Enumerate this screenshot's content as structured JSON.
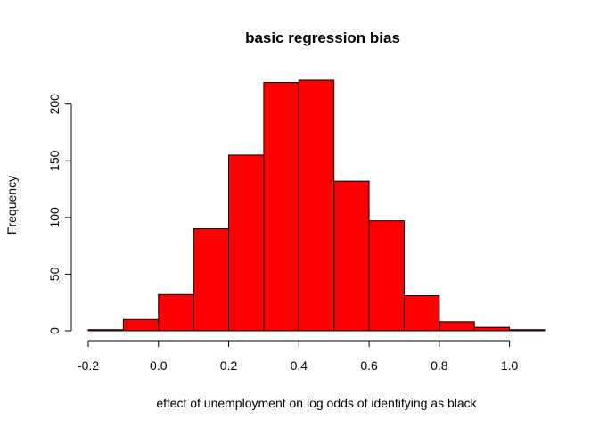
{
  "chart_data": {
    "type": "bar",
    "title": "basic regression bias",
    "xlabel": "effect of unemployment on log odds of identifying as black",
    "ylabel": "Frequency",
    "bin_edges": [
      -0.2,
      -0.1,
      0.0,
      0.1,
      0.2,
      0.3,
      0.4,
      0.5,
      0.6,
      0.7,
      0.8,
      0.9,
      1.0,
      1.1
    ],
    "values": [
      1,
      10,
      32,
      90,
      155,
      219,
      221,
      132,
      97,
      31,
      8,
      3,
      1
    ],
    "xlim": [
      -0.2,
      1.1
    ],
    "ylim": [
      0,
      221
    ],
    "xticks": [
      "-0.2",
      "0.0",
      "0.2",
      "0.4",
      "0.6",
      "0.8",
      "1.0"
    ],
    "yticks": [
      "0",
      "50",
      "100",
      "150",
      "200"
    ],
    "bar_color": "#ff0000",
    "grid": false,
    "legend": "none"
  }
}
